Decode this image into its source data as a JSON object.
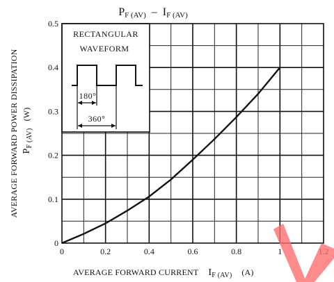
{
  "chart_data": {
    "type": "line",
    "title_main": "P",
    "title_main_sub": "F (AV)",
    "title_sep": "–",
    "title_right": "I",
    "title_right_sub": "F (AV)",
    "xlabel_main": "AVERAGE FORWARD CURRENT",
    "xlabel_sym": "I",
    "xlabel_sym_sub": "F (AV)",
    "xlabel_unit": "(A)",
    "ylabel_line1": "AVERAGE FORWARD POWER DISSIPATION",
    "ylabel_sym": "P",
    "ylabel_sym_sub": "F (AV)",
    "ylabel_unit": "(W)",
    "xlim": [
      0,
      1.2
    ],
    "ylim": [
      0,
      0.5
    ],
    "x_ticks": [
      "0",
      "0.2",
      "0.4",
      "0.6",
      "0.8",
      "1",
      "1.2"
    ],
    "y_ticks": [
      "0",
      "0.1",
      "0.2",
      "0.3",
      "0.4",
      "0.5"
    ],
    "grid": true,
    "series": [
      {
        "x": [
          0,
          0.1,
          0.2,
          0.3,
          0.4,
          0.5,
          0.6,
          0.7,
          0.8,
          0.9,
          1.0
        ],
        "y": [
          0,
          0.021,
          0.045,
          0.074,
          0.106,
          0.145,
          0.19,
          0.237,
          0.287,
          0.34,
          0.4
        ]
      }
    ],
    "inset": {
      "line1": "RECTANGULAR",
      "line2": "WAVEFORM",
      "dim_a": "180°",
      "dim_b": "360°"
    }
  }
}
